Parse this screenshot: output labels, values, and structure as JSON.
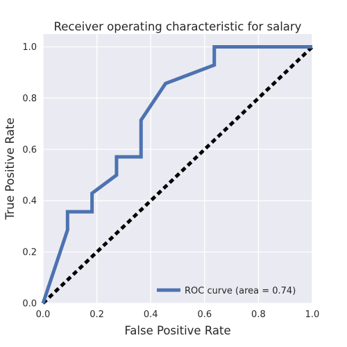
{
  "chart_data": {
    "type": "line",
    "title": "Receiver operating characteristic for salary",
    "xlabel": "False Positive Rate",
    "ylabel": "True Positive Rate",
    "xlim": [
      0,
      1
    ],
    "ylim": [
      0,
      1.05
    ],
    "xticks": [
      0.0,
      0.2,
      0.4,
      0.6,
      0.8,
      1.0
    ],
    "yticks": [
      0.0,
      0.2,
      0.4,
      0.6,
      0.8,
      1.0
    ],
    "xtick_labels": [
      "0.0",
      "0.2",
      "0.4",
      "0.6",
      "0.8",
      "1.0"
    ],
    "ytick_labels": [
      "0.0",
      "0.2",
      "0.4",
      "0.6",
      "0.8",
      "1.0"
    ],
    "grid": true,
    "legend_position": "bottom-right",
    "series": [
      {
        "name": "ROC curve (area = 0.74)",
        "color": "#4c72b0",
        "style": "solid",
        "x": [
          0.0,
          0.091,
          0.091,
          0.182,
          0.182,
          0.273,
          0.273,
          0.364,
          0.364,
          0.455,
          0.636,
          0.636,
          1.0
        ],
        "y": [
          0.0,
          0.286,
          0.357,
          0.357,
          0.429,
          0.5,
          0.571,
          0.571,
          0.714,
          0.857,
          0.929,
          1.0,
          1.0
        ]
      },
      {
        "color": "#000000",
        "style": "dashed",
        "x": [
          0.0,
          1.0
        ],
        "y": [
          0.0,
          1.0
        ]
      }
    ]
  }
}
